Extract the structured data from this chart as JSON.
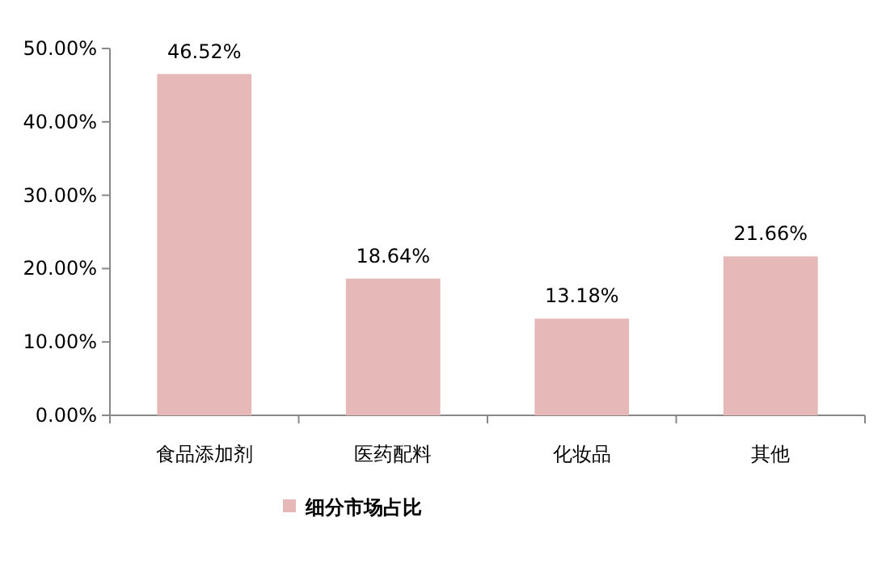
{
  "chart_data": {
    "type": "bar",
    "categories": [
      "食品添加剂",
      "医药配料",
      "化妆品",
      "其他"
    ],
    "series": [
      {
        "name": "细分市场占比",
        "color": "#e6b8b7",
        "values": [
          46.52,
          18.64,
          13.18,
          21.66
        ],
        "value_labels": [
          "46.52%",
          "18.64%",
          "13.18%",
          "21.66%"
        ]
      }
    ],
    "ylim": [
      0,
      50
    ],
    "yticks": [
      {
        "value": 0,
        "label": "0.00%"
      },
      {
        "value": 10,
        "label": "10.00%"
      },
      {
        "value": 20,
        "label": "20.00%"
      },
      {
        "value": 30,
        "label": "30.00%"
      },
      {
        "value": 40,
        "label": "40.00%"
      },
      {
        "value": 50,
        "label": "50.00%"
      }
    ],
    "grid": false,
    "legend": "bottom"
  }
}
